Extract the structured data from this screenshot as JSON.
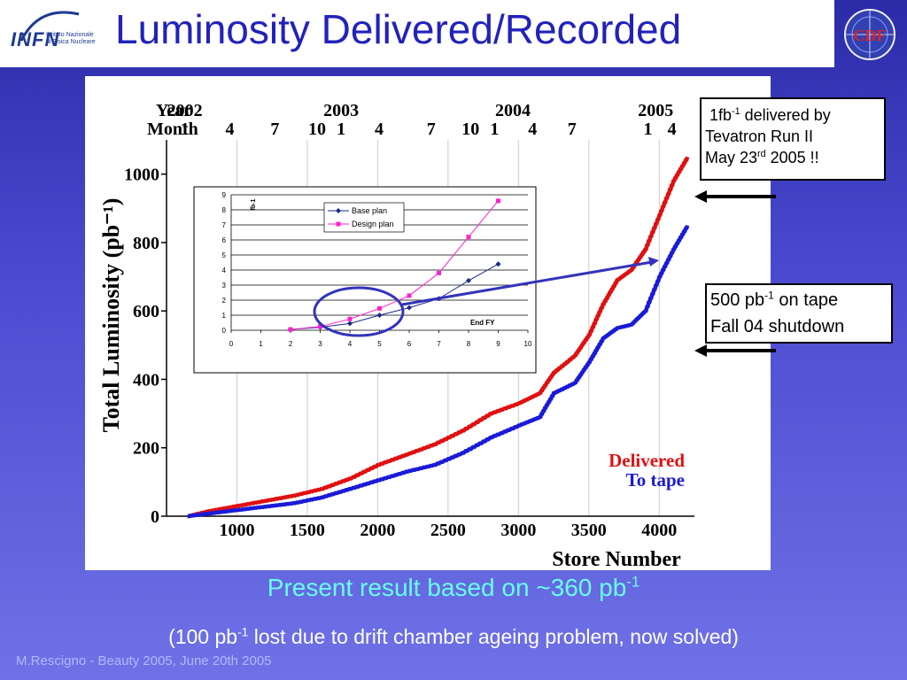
{
  "slide": {
    "title": "Luminosity Delivered/Recorded",
    "logo_left_text": "INFN",
    "logo_left_sub": "Istituto Nazionale di Fisica Nucleare",
    "logo_right_text": "CDF",
    "footer": "M.Rescigno - Beauty 2005,  June 20th 2005",
    "result_text": "Present result based on ~360 pb",
    "result_sup": "-1",
    "note_pre": "(100 pb",
    "note_sup": "-1",
    "note_post": " lost due to drift chamber ageing problem, now solved)"
  },
  "callouts": {
    "first": {
      "line1_pre": "1fb",
      "line1_sup": "-1",
      "line1_post": " delivered by",
      "line2": "Tevatron Run II",
      "line3_pre": "May 23",
      "line3_sup": "rd",
      "line3_post": " 2005 !!"
    },
    "second": {
      "line1_pre": "500 pb",
      "line1_sup": "-1",
      "line1_post": "  on tape",
      "line2": "Fall 04 shutdown"
    }
  },
  "colors": {
    "delivered": "#e01010",
    "to_tape": "#1a1ad8",
    "base_plan": "#1a2a8a",
    "design_plan": "#ff22cc",
    "title": "#2222bb",
    "result_text": "#66ffee"
  },
  "chart_data": [
    {
      "type": "line",
      "xlabel": "Store Number",
      "ylabel": "Total Luminosity (pb⁻¹)",
      "xlim": [
        500,
        4250
      ],
      "ylim": [
        0,
        1100
      ],
      "x_ticks": [
        "1000",
        "1500",
        "2000",
        "2500",
        "3000",
        "3500",
        "4000"
      ],
      "y_ticks": [
        "0",
        "200",
        "400",
        "600",
        "800",
        "1000"
      ],
      "top_axis": {
        "year_label": "Year",
        "month_label": "Month",
        "years": [
          {
            "label": "2002",
            "x": 630
          },
          {
            "label": "2003",
            "x": 1740
          },
          {
            "label": "2004",
            "x": 2960
          },
          {
            "label": "2005",
            "x": 3975
          }
        ],
        "months": [
          {
            "label": "1",
            "x": 630
          },
          {
            "label": "4",
            "x": 950
          },
          {
            "label": "7",
            "x": 1270
          },
          {
            "label": "10",
            "x": 1570
          },
          {
            "label": "1",
            "x": 1740
          },
          {
            "label": "4",
            "x": 2010
          },
          {
            "label": "7",
            "x": 2380
          },
          {
            "label": "10",
            "x": 2660
          },
          {
            "label": "1",
            "x": 2830
          },
          {
            "label": "4",
            "x": 3100
          },
          {
            "label": "7",
            "x": 3380
          },
          {
            "label": "1",
            "x": 3920
          },
          {
            "label": "4",
            "x": 4090
          }
        ]
      },
      "legend": [
        "Delivered",
        "To tape"
      ],
      "legend_position": "bottom-right",
      "series": [
        {
          "name": "Delivered",
          "x": [
            650,
            800,
            1000,
            1200,
            1400,
            1600,
            1800,
            2000,
            2200,
            2400,
            2600,
            2800,
            3000,
            3150,
            3250,
            3400,
            3500,
            3600,
            3700,
            3800,
            3900,
            4000,
            4100,
            4200
          ],
          "y": [
            0,
            15,
            30,
            45,
            60,
            80,
            110,
            150,
            180,
            210,
            250,
            300,
            330,
            360,
            420,
            470,
            530,
            620,
            690,
            720,
            780,
            880,
            980,
            1050
          ]
        },
        {
          "name": "To tape",
          "x": [
            650,
            800,
            1000,
            1200,
            1400,
            1600,
            1800,
            2000,
            2200,
            2400,
            2600,
            2800,
            3000,
            3150,
            3250,
            3400,
            3500,
            3600,
            3700,
            3800,
            3900,
            4000,
            4100,
            4200
          ],
          "y": [
            0,
            8,
            18,
            28,
            38,
            55,
            80,
            105,
            130,
            150,
            185,
            230,
            265,
            290,
            360,
            390,
            450,
            520,
            550,
            560,
            600,
            700,
            780,
            850
          ]
        }
      ]
    },
    {
      "type": "line",
      "title": "",
      "ylabel": "fb-1",
      "xlim": [
        0,
        10
      ],
      "ylim": [
        0,
        9
      ],
      "x_ticks": [
        "0",
        "1",
        "2",
        "3",
        "4",
        "5",
        "6",
        "7",
        "8",
        "9",
        "10"
      ],
      "y_ticks": [
        "0",
        "1",
        "2",
        "3",
        "4",
        "5",
        "6",
        "7",
        "8",
        "9"
      ],
      "annotation": "End FY",
      "legend_position": "top-center",
      "series": [
        {
          "name": "Base plan",
          "x": [
            2,
            3,
            4,
            5,
            6,
            7,
            8,
            9
          ],
          "y": [
            0.05,
            0.2,
            0.45,
            1.0,
            1.5,
            2.1,
            3.3,
            4.4
          ]
        },
        {
          "name": "Design plan",
          "x": [
            2,
            3,
            4,
            5,
            6,
            7,
            8,
            9
          ],
          "y": [
            0.05,
            0.25,
            0.75,
            1.45,
            2.3,
            3.8,
            6.2,
            8.6
          ]
        }
      ]
    }
  ]
}
